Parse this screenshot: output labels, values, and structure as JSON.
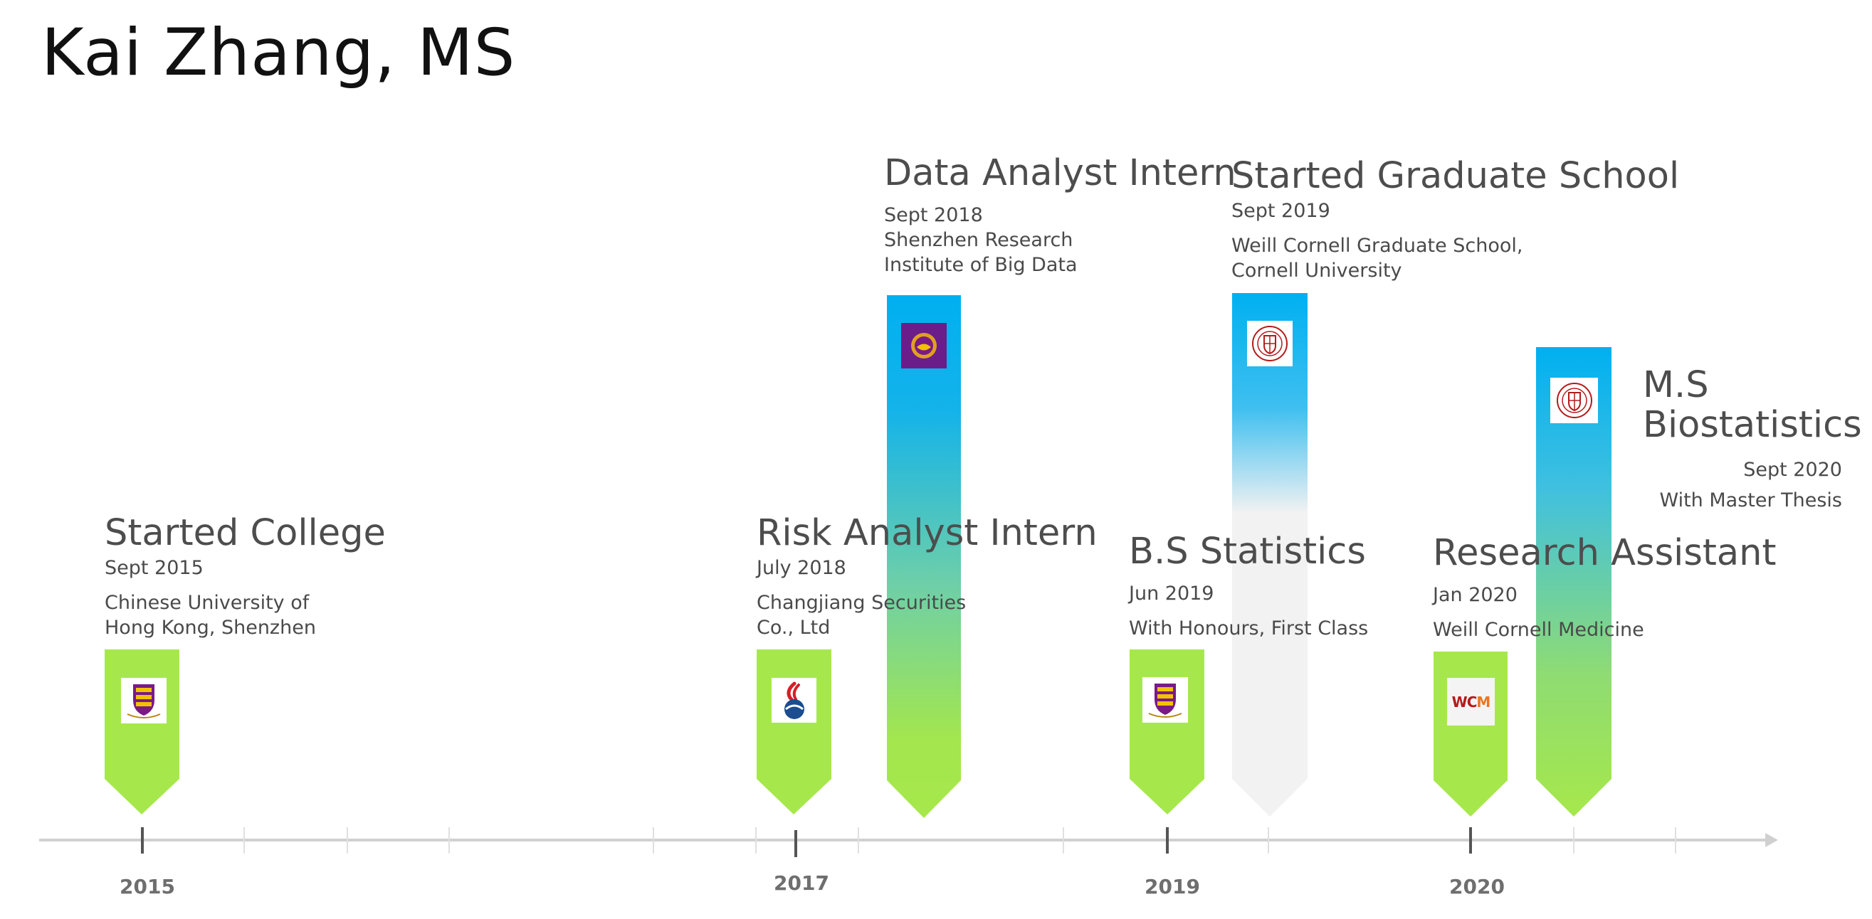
{
  "title": "Kai Zhang, MS",
  "colors": {
    "green": "#a6e84b",
    "blue": "#00b0f0",
    "grey_marker": "#f2f2f2",
    "axis": "#d0d0d0",
    "title_text": "#111111",
    "body_text": "#4a4a4a",
    "cuhk_purple": "#7a1a85",
    "cornell_red": "#b31b1b",
    "wcm_red": "#b31b1b",
    "wcm_orange": "#e87722"
  },
  "events": {
    "started_college": {
      "title": "Started College",
      "date": "Sept 2015",
      "lines": [
        "Chinese University of",
        "Hong Kong, Shenzhen"
      ],
      "logo": "cuhk-crest-icon"
    },
    "risk_analyst": {
      "title": "Risk Analyst Intern",
      "date": "July 2018",
      "lines": [
        "Changjiang Securities",
        "Co., Ltd"
      ],
      "logo": "changjiang-securities-logo-icon"
    },
    "data_analyst": {
      "title": "Data Analyst Intern",
      "date": "Sept 2018",
      "lines": [
        "Shenzhen Research",
        "Institute of Big Data"
      ],
      "logo": "cuhk-purple-seal-icon"
    },
    "bs_statistics": {
      "title": "B.S Statistics",
      "date": "Jun 2019",
      "lines": [
        "With Honours, First Class"
      ],
      "logo": "cuhk-crest-icon"
    },
    "grad_school": {
      "title": "Started Graduate School",
      "date": "Sept 2019",
      "lines": [
        "Weill Cornell Graduate School,",
        "Cornell University"
      ],
      "logo": "cornell-seal-icon"
    },
    "research_assistant": {
      "title": "Research Assistant",
      "date": "Jan 2020",
      "lines": [
        "Weill Cornell Medicine"
      ],
      "logo": "wcm-logo-icon",
      "logo_text_a": "WC",
      "logo_text_b": "M"
    },
    "ms_biostat": {
      "title_line1": "M.S",
      "title_line2": "Biostatistics",
      "date": "Sept 2020",
      "lines": [
        "With Master Thesis"
      ],
      "logo": "cornell-seal-icon"
    }
  },
  "axis": {
    "years": [
      "2015",
      "2017",
      "2019",
      "2020"
    ]
  }
}
